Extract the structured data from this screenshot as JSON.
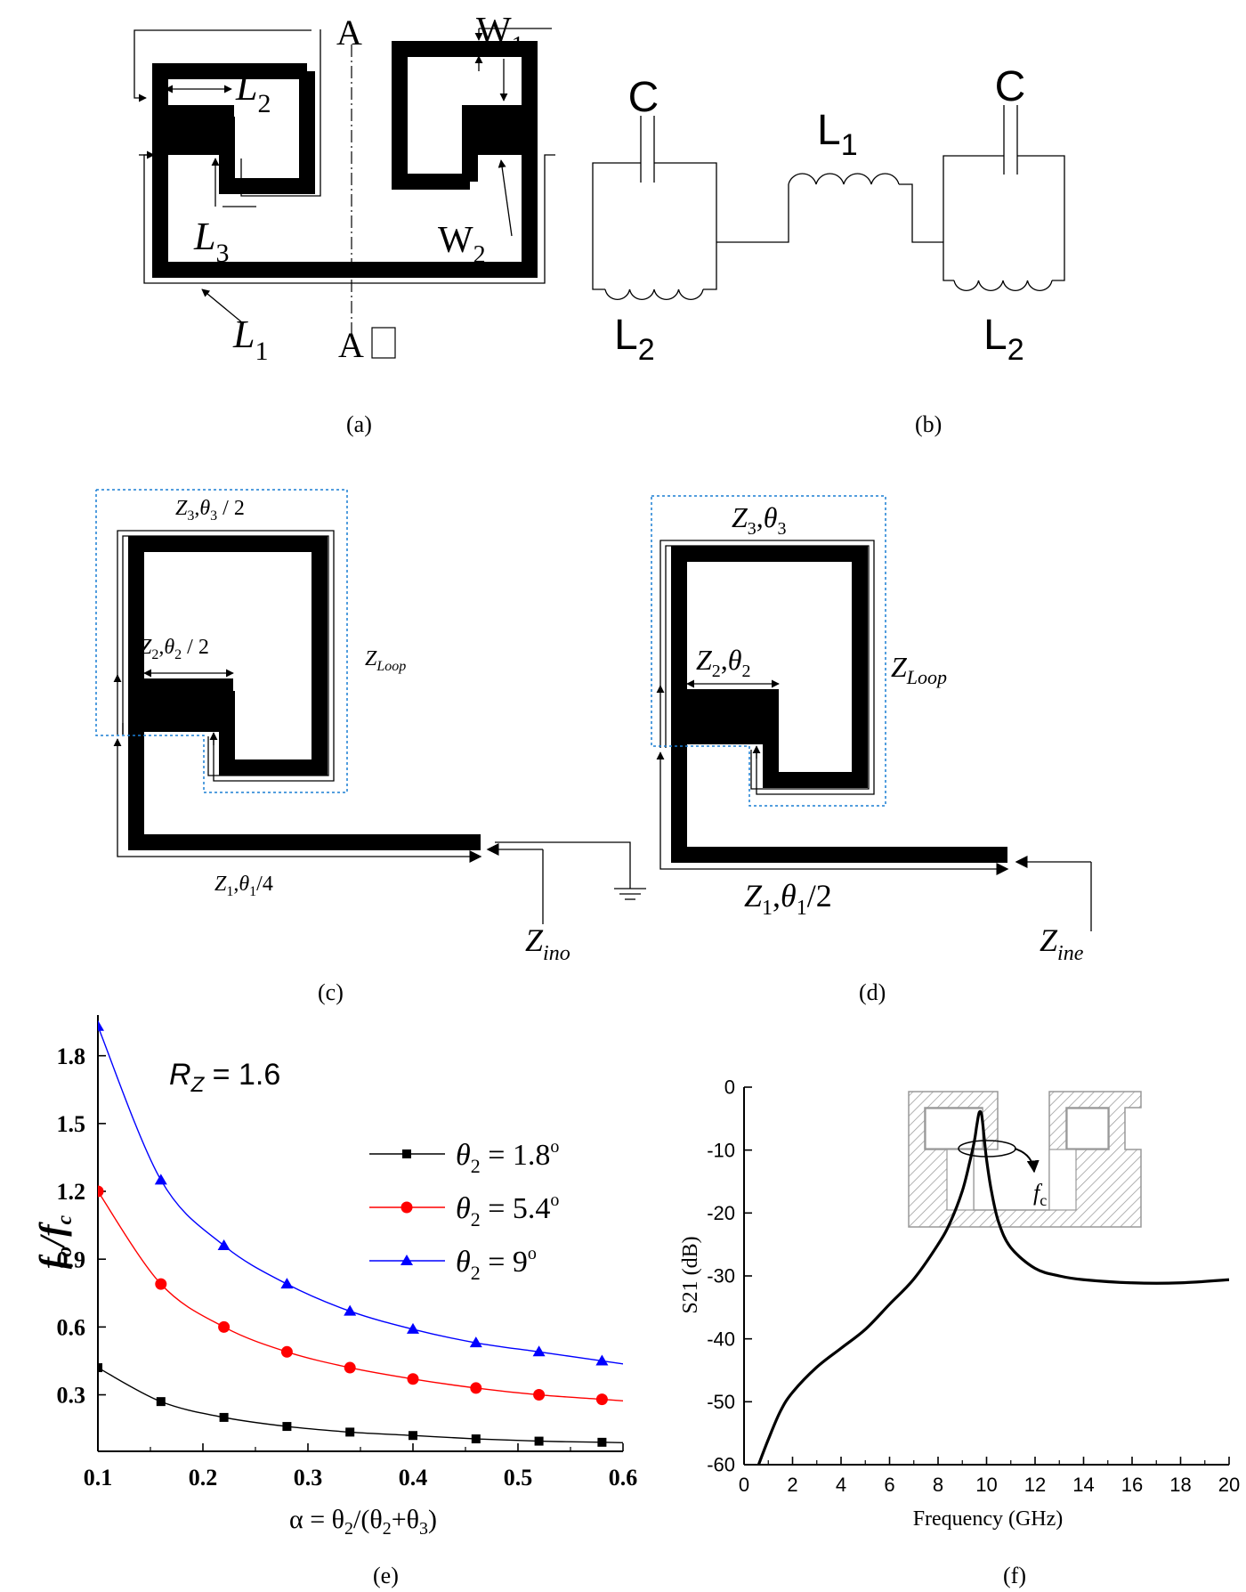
{
  "panels": {
    "a": {
      "caption": "(a)",
      "label_A_top": "A",
      "label_A_bottom": "A",
      "label_A_bottom_box": "□",
      "W1": {
        "main": "W",
        "sub": "1"
      },
      "W2": {
        "main": "W",
        "sub": "2"
      },
      "L1": {
        "main": "L",
        "sub": "1"
      },
      "L2": {
        "main": "L",
        "sub": "2"
      },
      "L3": {
        "main": "L",
        "sub": "3"
      }
    },
    "b": {
      "caption": "(b)",
      "C_left": "C",
      "C_right": "C",
      "L1": {
        "main": "L",
        "sub": "1"
      },
      "L2_left": {
        "main": "L",
        "sub": "2"
      },
      "L2_right": {
        "main": "L",
        "sub": "2"
      }
    },
    "c": {
      "caption": "(c)",
      "z3": {
        "Z": "Z",
        "zsub": "3",
        "th": "θ",
        "thsub": "3",
        "tail": " / 2"
      },
      "z2": {
        "Z": "Z",
        "zsub": "2",
        "th": "θ",
        "thsub": "2",
        "tail": " / 2"
      },
      "z1": {
        "Z": "Z",
        "zsub": "1",
        "th": "θ",
        "thsub": "1",
        "tail": "/4"
      },
      "zloop": {
        "Z": "Z",
        "sub": "Loop"
      },
      "zin": {
        "Z": "Z",
        "sub": "ino"
      }
    },
    "d": {
      "caption": "(d)",
      "z3": {
        "Z": "Z",
        "zsub": "3",
        "th": "θ",
        "thsub": "3",
        "tail": ""
      },
      "z2": {
        "Z": "Z",
        "zsub": "2",
        "th": "θ",
        "thsub": "2",
        "tail": ""
      },
      "z1": {
        "Z": "Z",
        "zsub": "1",
        "th": "θ",
        "thsub": "1",
        "tail": "/2"
      },
      "zloop": {
        "Z": "Z",
        "sub": "Loop"
      },
      "zin": {
        "Z": "Z",
        "sub": "ine"
      }
    },
    "e": {
      "caption": "(e)"
    },
    "f": {
      "caption": "(f)"
    }
  },
  "chart_data": [
    {
      "panel": "e",
      "type": "line",
      "annotation": {
        "R": "R",
        "sub": "Z",
        "rest": " = 1.6"
      },
      "ylabel": {
        "f": "f",
        "osub": "o",
        "slash": "/",
        "f2": "f",
        "csub": "c"
      },
      "xlabel": {
        "lead": "α = θ",
        "sub1": "2",
        "mid": "/(θ",
        "sub2": "2",
        "mid2": "+θ",
        "sub3": "3",
        "tail": ")"
      },
      "xlim": [
        0.1,
        0.6
      ],
      "ylim": [
        0.05,
        1.98
      ],
      "x_ticks": [
        "0.1",
        "0.2",
        "0.3",
        "0.4",
        "0.5",
        "0.6"
      ],
      "y_ticks": [
        "0.3",
        "0.6",
        "0.9",
        "1.2",
        "1.5",
        "1.8"
      ],
      "legend_position": "center-right",
      "series": [
        {
          "name": "θ2 = 1.8°",
          "legend": {
            "th": "θ",
            "sub": "2",
            "val": " = 1.8",
            "sup": "o"
          },
          "color": "#000000",
          "marker": "square",
          "x": [
            0.1,
            0.16,
            0.22,
            0.28,
            0.34,
            0.4,
            0.46,
            0.52,
            0.58
          ],
          "y": [
            0.42,
            0.27,
            0.2,
            0.16,
            0.135,
            0.12,
            0.105,
            0.095,
            0.09
          ]
        },
        {
          "name": "θ2 = 5.4°",
          "legend": {
            "th": "θ",
            "sub": "2",
            "val": " = 5.4",
            "sup": "o"
          },
          "color": "#ff0000",
          "marker": "circle",
          "x": [
            0.1,
            0.16,
            0.22,
            0.28,
            0.34,
            0.4,
            0.46,
            0.52,
            0.58
          ],
          "y": [
            1.2,
            0.79,
            0.6,
            0.49,
            0.42,
            0.37,
            0.33,
            0.3,
            0.28
          ]
        },
        {
          "name": "θ2 = 9°",
          "legend": {
            "th": "θ",
            "sub": "2",
            "val": " = 9",
            "sup": "o"
          },
          "color": "#0000ff",
          "marker": "triangle",
          "x": [
            0.1,
            0.16,
            0.22,
            0.28,
            0.34,
            0.4,
            0.46,
            0.52,
            0.58
          ],
          "y": [
            1.93,
            1.25,
            0.96,
            0.79,
            0.67,
            0.59,
            0.53,
            0.49,
            0.45
          ]
        }
      ]
    },
    {
      "panel": "f",
      "type": "line",
      "xlabel": "Frequency (GHz)",
      "ylabel": "S21 (dB)",
      "xlim": [
        0,
        20
      ],
      "ylim": [
        -60,
        0
      ],
      "x_ticks": [
        "0",
        "2",
        "4",
        "6",
        "8",
        "10",
        "12",
        "14",
        "16",
        "18",
        "20"
      ],
      "y_ticks": [
        "0",
        "-10",
        "-20",
        "-30",
        "-40",
        "-50",
        "-60"
      ],
      "annotation": {
        "f": "f",
        "sub": "c"
      },
      "series": [
        {
          "color": "#000000",
          "x": [
            0.6,
            1,
            1.5,
            2,
            3,
            4,
            5,
            6,
            7,
            8,
            8.5,
            9,
            9.3,
            9.5,
            9.6,
            9.7,
            9.8,
            9.9,
            10.0,
            10.2,
            10.5,
            11,
            12,
            13,
            14,
            16,
            18,
            20
          ],
          "y": [
            -60,
            -56,
            -51.5,
            -48.5,
            -44.5,
            -41.5,
            -38.5,
            -34.5,
            -30.5,
            -25,
            -21.5,
            -16.5,
            -12,
            -8.5,
            -6,
            -4,
            -4.5,
            -8,
            -11.5,
            -16.5,
            -21.5,
            -25.5,
            -28.8,
            -30.0,
            -30.6,
            -31.1,
            -31.1,
            -30.6
          ]
        }
      ]
    }
  ]
}
